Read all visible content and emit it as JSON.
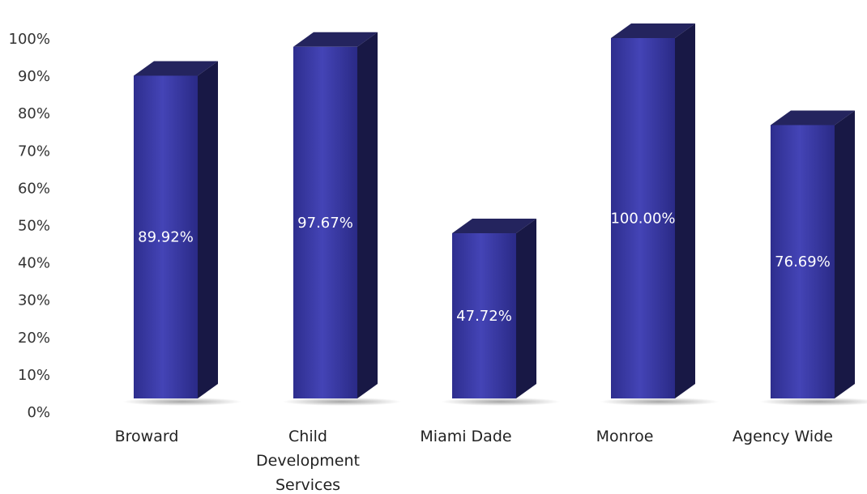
{
  "chart_data": {
    "type": "bar",
    "categories": [
      "Broward",
      "Child Development Services",
      "Miami Dade",
      "Monroe",
      "Agency Wide"
    ],
    "category_lines": [
      [
        "Broward"
      ],
      [
        "Child",
        "Development",
        "Services"
      ],
      [
        "Miami Dade"
      ],
      [
        "Monroe"
      ],
      [
        "Agency Wide"
      ]
    ],
    "values": [
      89.92,
      97.67,
      47.72,
      100.0,
      76.69
    ],
    "data_labels": [
      "89.92%",
      "97.67%",
      "47.72%",
      "100.00%",
      "76.69%"
    ],
    "y_ticks": [
      "0%",
      "10%",
      "20%",
      "30%",
      "40%",
      "50%",
      "60%",
      "70%",
      "80%",
      "90%",
      "100%"
    ],
    "ylim": [
      0,
      100
    ],
    "bar_style": "3d",
    "legend": "none",
    "grid": false,
    "colors": {
      "bar_front": "#3a3aa3",
      "bar_top": "#24245e",
      "bar_side": "#181845",
      "label": "#ffffff"
    }
  }
}
